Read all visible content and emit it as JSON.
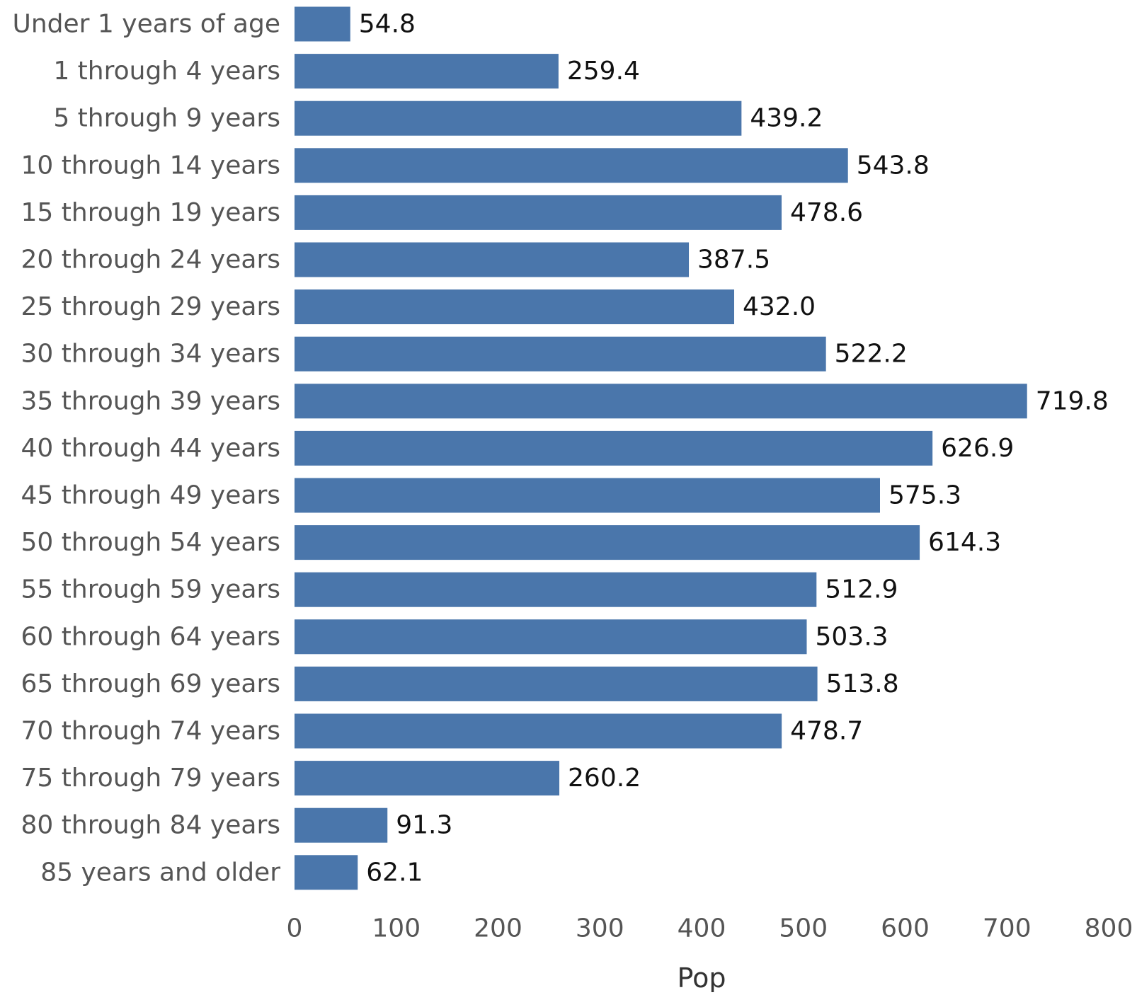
{
  "chart_data": {
    "type": "bar",
    "orientation": "horizontal",
    "categories": [
      "Under 1 years of age",
      "1 through 4 years",
      "5 through 9 years",
      "10 through 14 years",
      "15 through 19 years",
      "20 through 24 years",
      "25 through 29 years",
      "30 through 34 years",
      "35 through 39 years",
      "40 through 44 years",
      "45 through 49 years",
      "50 through 54 years",
      "55 through 59 years",
      "60 through 64 years",
      "65 through 69 years",
      "70 through 74 years",
      "75 through 79 years",
      "80 through 84 years",
      "85 years and older"
    ],
    "values": [
      54.8,
      259.4,
      439.2,
      543.8,
      478.6,
      387.5,
      432.0,
      522.2,
      719.8,
      626.9,
      575.3,
      614.3,
      512.9,
      503.3,
      513.8,
      478.7,
      260.2,
      91.3,
      62.1
    ],
    "value_labels": [
      "54.8",
      "259.4",
      "439.2",
      "543.8",
      "478.6",
      "387.5",
      "432.0",
      "522.2",
      "719.8",
      "626.9",
      "575.3",
      "614.3",
      "512.9",
      "503.3",
      "513.8",
      "478.7",
      "260.2",
      "91.3",
      "62.1"
    ],
    "x_ticks": [
      0,
      100,
      200,
      300,
      400,
      500,
      600,
      700,
      800
    ],
    "xlabel": "Pop",
    "xlim": [
      0,
      800
    ],
    "bar_color": "#4a76ab",
    "grid": false
  }
}
